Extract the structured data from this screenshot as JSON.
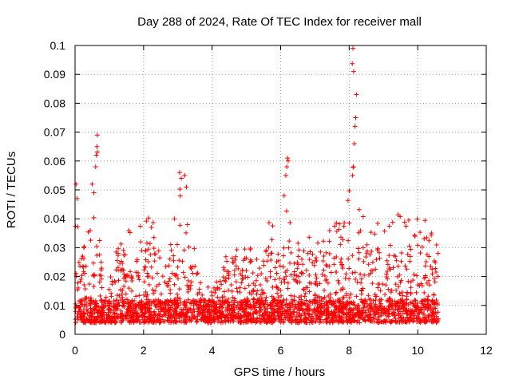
{
  "chart_data": {
    "type": "scatter",
    "title": "Day 288 of 2024, Rate Of TEC Index for receiver mall",
    "xlabel": "GPS time / hours",
    "ylabel": "ROTI / TECUs",
    "xlim": [
      0,
      12
    ],
    "ylim": [
      0,
      0.1
    ],
    "x_ticks": [
      "0",
      "2",
      "4",
      "6",
      "8",
      "10",
      "12"
    ],
    "y_ticks": [
      "0",
      "0.01",
      "0.02",
      "0.03",
      "0.04",
      "0.05",
      "0.06",
      "0.07",
      "0.08",
      "0.09",
      "0.1"
    ],
    "grid": true,
    "marker": "+",
    "color": "#ff0000",
    "series": [
      {
        "name": "ROTI",
        "x_range": [
          0,
          10.6
        ],
        "baseline_range": [
          0.004,
          0.012
        ],
        "envelope": [
          {
            "x": 0.0,
            "y": 0.052
          },
          {
            "x": 0.1,
            "y": 0.045
          },
          {
            "x": 0.3,
            "y": 0.035
          },
          {
            "x": 0.5,
            "y": 0.052
          },
          {
            "x": 0.65,
            "y": 0.069
          },
          {
            "x": 0.8,
            "y": 0.015
          },
          {
            "x": 1.0,
            "y": 0.018
          },
          {
            "x": 1.2,
            "y": 0.03
          },
          {
            "x": 1.5,
            "y": 0.04
          },
          {
            "x": 1.8,
            "y": 0.035
          },
          {
            "x": 2.2,
            "y": 0.045
          },
          {
            "x": 2.5,
            "y": 0.025
          },
          {
            "x": 2.8,
            "y": 0.035
          },
          {
            "x": 3.05,
            "y": 0.056
          },
          {
            "x": 3.3,
            "y": 0.048
          },
          {
            "x": 3.6,
            "y": 0.02
          },
          {
            "x": 4.0,
            "y": 0.015
          },
          {
            "x": 4.5,
            "y": 0.03
          },
          {
            "x": 5.0,
            "y": 0.03
          },
          {
            "x": 5.5,
            "y": 0.04
          },
          {
            "x": 6.0,
            "y": 0.045
          },
          {
            "x": 6.2,
            "y": 0.061
          },
          {
            "x": 6.5,
            "y": 0.035
          },
          {
            "x": 7.0,
            "y": 0.035
          },
          {
            "x": 7.5,
            "y": 0.04
          },
          {
            "x": 7.9,
            "y": 0.04
          },
          {
            "x": 8.1,
            "y": 0.099
          },
          {
            "x": 8.3,
            "y": 0.045
          },
          {
            "x": 8.8,
            "y": 0.045
          },
          {
            "x": 9.3,
            "y": 0.045
          },
          {
            "x": 9.8,
            "y": 0.04
          },
          {
            "x": 10.3,
            "y": 0.04
          },
          {
            "x": 10.6,
            "y": 0.03
          }
        ],
        "spikes": [
          {
            "x": 0.03,
            "y": 0.052
          },
          {
            "x": 0.06,
            "y": 0.047
          },
          {
            "x": 0.5,
            "y": 0.052
          },
          {
            "x": 0.55,
            "y": 0.049
          },
          {
            "x": 0.6,
            "y": 0.058
          },
          {
            "x": 0.62,
            "y": 0.062
          },
          {
            "x": 0.64,
            "y": 0.065
          },
          {
            "x": 0.65,
            "y": 0.069
          },
          {
            "x": 3.05,
            "y": 0.056
          },
          {
            "x": 3.1,
            "y": 0.054
          },
          {
            "x": 3.2,
            "y": 0.055
          },
          {
            "x": 3.25,
            "y": 0.051
          },
          {
            "x": 6.1,
            "y": 0.048
          },
          {
            "x": 6.15,
            "y": 0.055
          },
          {
            "x": 6.18,
            "y": 0.058
          },
          {
            "x": 6.2,
            "y": 0.061
          },
          {
            "x": 6.22,
            "y": 0.06
          },
          {
            "x": 8.1,
            "y": 0.055
          },
          {
            "x": 8.12,
            "y": 0.058
          },
          {
            "x": 8.15,
            "y": 0.066
          },
          {
            "x": 8.17,
            "y": 0.072
          },
          {
            "x": 8.19,
            "y": 0.075
          },
          {
            "x": 8.21,
            "y": 0.083
          },
          {
            "x": 8.13,
            "y": 0.091
          },
          {
            "x": 8.11,
            "y": 0.099
          }
        ]
      }
    ]
  }
}
